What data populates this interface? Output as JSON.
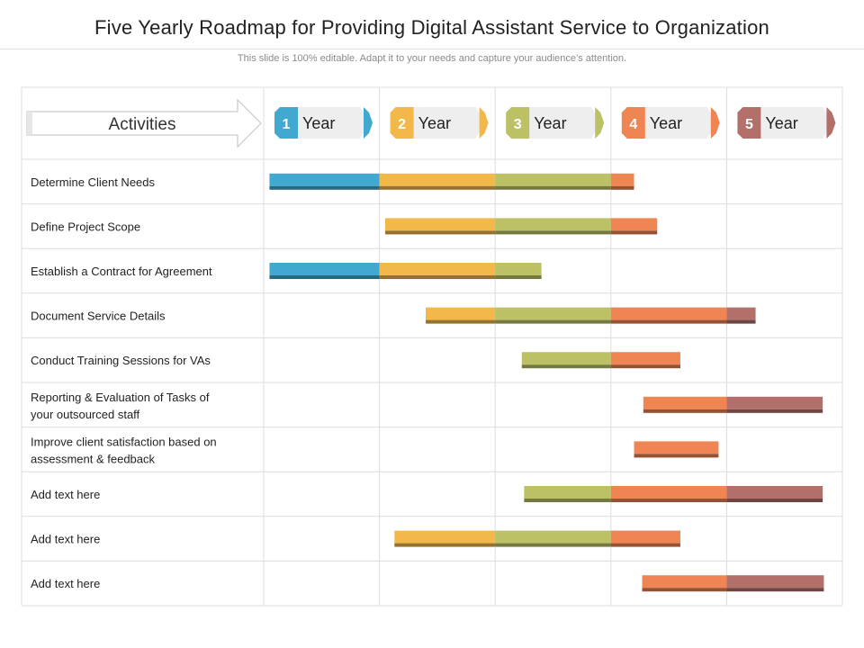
{
  "title": "Five Yearly Roadmap for Providing Digital Assistant Service to Organization",
  "subtitle": "This slide is 100% editable. Adapt it to your needs and capture your audience’s attention.",
  "colors": {
    "year1": "#41a8cf",
    "year2": "#f2b84a",
    "year3": "#bdc165",
    "year4": "#ee8553",
    "year5": "#b3706b",
    "grid": "#dddddd"
  },
  "chart_data": {
    "type": "gantt",
    "header_label": "Activities",
    "periods": [
      {
        "num": "1",
        "label": "Year"
      },
      {
        "num": "2",
        "label": "Year"
      },
      {
        "num": "3",
        "label": "Year"
      },
      {
        "num": "4",
        "label": "Year"
      },
      {
        "num": "5",
        "label": "Year"
      }
    ],
    "tasks": [
      {
        "lines": [
          "Determine Client Needs"
        ],
        "start": 0.05,
        "end": 3.2
      },
      {
        "lines": [
          "Define Project Scope"
        ],
        "start": 1.05,
        "end": 3.4
      },
      {
        "lines": [
          "Establish a Contract for Agreement"
        ],
        "start": 0.05,
        "end": 2.4
      },
      {
        "lines": [
          "Document Service Details"
        ],
        "start": 1.4,
        "end": 4.25
      },
      {
        "lines": [
          "Conduct Training Sessions for VAs"
        ],
        "start": 2.23,
        "end": 3.6
      },
      {
        "lines": [
          "Reporting & Evaluation of Tasks of",
          "your outsourced staff"
        ],
        "start": 3.28,
        "end": 4.83
      },
      {
        "lines": [
          "Improve  client satisfaction based on",
          "assessment & feedback"
        ],
        "start": 3.2,
        "end": 3.93
      },
      {
        "lines": [
          "Add text here"
        ],
        "start": 2.25,
        "end": 4.83
      },
      {
        "lines": [
          "Add text here"
        ],
        "start": 1.13,
        "end": 3.6
      },
      {
        "lines": [
          "Add text here"
        ],
        "start": 3.27,
        "end": 4.84
      }
    ]
  }
}
